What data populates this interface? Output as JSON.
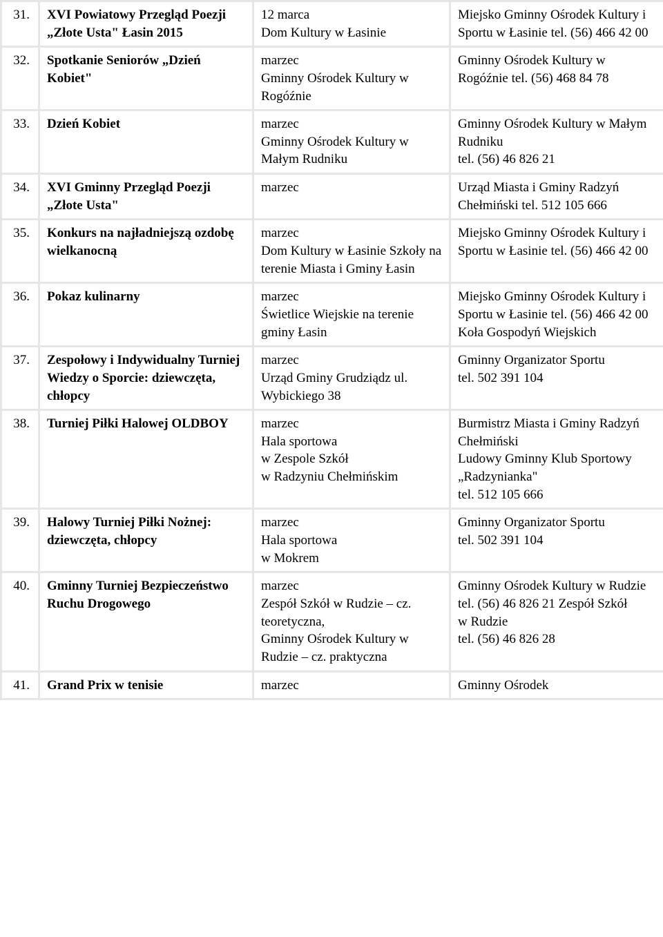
{
  "rows": [
    {
      "num": "31.",
      "event": "XVI Powiatowy Przegląd Poezji „Złote Usta\" Łasin 2015",
      "date": "12 marca\nDom Kultury w Łasinie",
      "org": "Miejsko Gminny Ośrodek Kultury i Sportu w Łasinie tel. (56) 466 42 00"
    },
    {
      "num": "32.",
      "event": "Spotkanie Seniorów „Dzień Kobiet\"",
      "date": "marzec\nGminny Ośrodek Kultury w Rogóźnie",
      "org": "Gminny Ośrodek Kultury w Rogóźnie tel. (56) 468 84 78"
    },
    {
      "num": "33.",
      "event": "Dzień Kobiet",
      "date": "marzec\nGminny Ośrodek Kultury w Małym Rudniku",
      "org": "Gminny Ośrodek Kultury w Małym Rudniku\ntel. (56) 46 826 21"
    },
    {
      "num": "34.",
      "event": "XVI Gminny Przegląd Poezji „Złote Usta\"",
      "date": "marzec",
      "org": "Urząd Miasta i Gminy Radzyń Chełmiński tel. 512 105 666"
    },
    {
      "num": "35.",
      "event": "Konkurs na najładniejszą ozdobę wielkanocną",
      "date": "marzec\nDom Kultury  w Łasinie Szkoły na terenie Miasta i Gminy Łasin",
      "org": "Miejsko Gminny Ośrodek Kultury i Sportu w Łasinie tel. (56) 466 42 00"
    },
    {
      "num": "36.",
      "event": "Pokaz kulinarny",
      "date": "marzec\nŚwietlice Wiejskie na terenie gminy Łasin",
      "org": "Miejsko Gminny Ośrodek Kultury i Sportu w Łasinie tel. (56) 466 42 00 Koła Gospodyń Wiejskich"
    },
    {
      "num": "37.",
      "event": "Zespołowy i Indywidualny Turniej Wiedzy o Sporcie: dziewczęta, chłopcy",
      "date": "marzec\nUrząd Gminy Grudziądz ul. Wybickiego 38",
      "org": "Gminny Organizator Sportu\ntel. 502 391 104"
    },
    {
      "num": "38.",
      "event": "Turniej Piłki Halowej OLDBOY",
      "date": "marzec\nHala sportowa\nw Zespole Szkół\nw Radzyniu Chełmińskim",
      "org": "Burmistrz Miasta i Gminy Radzyń Chełmiński\nLudowy Gminny Klub Sportowy „Radzynianka\"\ntel. 512 105 666"
    },
    {
      "num": "39.",
      "event": "Halowy Turniej Piłki Nożnej: dziewczęta, chłopcy",
      "date": "marzec\nHala sportowa\nw Mokrem",
      "org": "Gminny Organizator Sportu\ntel. 502 391 104"
    },
    {
      "num": "40.",
      "event": "Gminny Turniej Bezpieczeństwo Ruchu Drogowego",
      "date": "marzec\nZespół Szkół w Rudzie – cz. teoretyczna,\nGminny Ośrodek Kultury w Rudzie – cz. praktyczna",
      "org": "Gminny Ośrodek Kultury w Rudzie\ntel. (56) 46 826 21 Zespół Szkół\nw Rudzie\ntel. (56) 46 826 28"
    },
    {
      "num": "41.",
      "event": "Grand Prix w tenisie",
      "date": "marzec",
      "org": "Gminny Ośrodek"
    }
  ]
}
